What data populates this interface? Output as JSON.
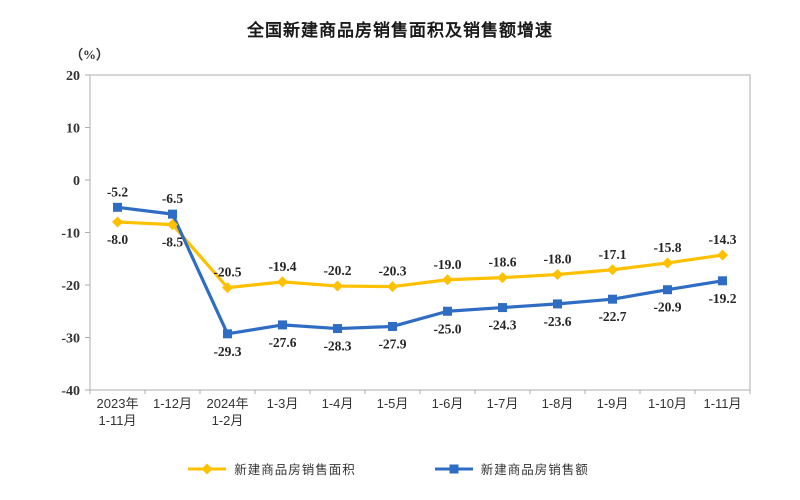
{
  "page": {
    "title": "全国新建商品房销售面积及销售额增速",
    "unit_label": "（%）"
  },
  "chart_data": {
    "type": "line",
    "title": "全国新建商品房销售面积及销售额增速",
    "ylabel": "（%）",
    "xlabel": "",
    "ylim": [
      -40,
      20
    ],
    "ytick_interval": 10,
    "ytick_labels": [
      "20",
      "10",
      "0",
      "-10",
      "-20",
      "-30",
      "-40"
    ],
    "grid": false,
    "legend_position": "bottom",
    "categories": [
      "2023年\n1-11月",
      "1-12月",
      "2024年\n1-2月",
      "1-3月",
      "1-4月",
      "1-5月",
      "1-6月",
      "1-7月",
      "1-8月",
      "1-9月",
      "1-10月",
      "1-11月"
    ],
    "series": [
      {
        "name": "新建商品房销售面积",
        "color": "#FFC000",
        "marker": "diamond",
        "values": [
          -8.0,
          -8.5,
          -20.5,
          -19.4,
          -20.2,
          -20.3,
          -19.0,
          -18.6,
          -18.0,
          -17.1,
          -15.8,
          -14.3
        ]
      },
      {
        "name": "新建商品房销售额",
        "color": "#2E6DC3",
        "marker": "square",
        "values": [
          -5.2,
          -6.5,
          -29.3,
          -27.6,
          -28.3,
          -27.9,
          -25.0,
          -24.3,
          -23.6,
          -22.7,
          -20.9,
          -19.2
        ]
      }
    ]
  },
  "style": {
    "border_color": "#c9c9c9",
    "tick_color": "#aeaeae"
  }
}
